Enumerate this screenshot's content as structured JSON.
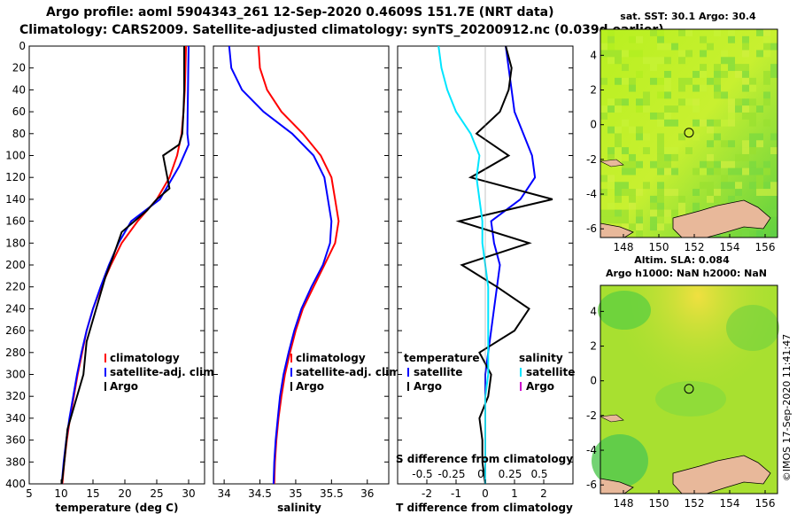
{
  "header": {
    "line1": "Argo profile: aoml 5904343_261 12-Sep-2020 0.4609S 151.7E (NRT data)",
    "line2": "Climatology: CARS2009. Satellite-adjusted climatology: synTS_20200912.nc (0.039d earlier)"
  },
  "colors": {
    "clim": "#ff0000",
    "sat": "#0000ff",
    "argo": "#000000",
    "sat_s": "#00e5ff",
    "argo_s": "#cc00cc",
    "land": "#e8b89a"
  },
  "chart_data": [
    {
      "type": "line",
      "name": "temperature",
      "xlabel": "temperature (deg C)",
      "ylabel": "",
      "xlim": [
        5,
        32.5
      ],
      "ylim": [
        400,
        0
      ],
      "xticks": [
        5,
        10,
        15,
        20,
        25,
        30
      ],
      "yticks": [
        0,
        20,
        40,
        60,
        80,
        100,
        120,
        140,
        160,
        180,
        200,
        220,
        240,
        260,
        280,
        300,
        320,
        340,
        360,
        380,
        400
      ],
      "legend": [
        "climatology",
        "satellite-adj. clim.",
        "Argo"
      ],
      "series": [
        {
          "name": "climatology",
          "color": "#ff0000",
          "x": [
            29.6,
            29.5,
            29.4,
            29.2,
            28.9,
            28.2,
            27.0,
            25.0,
            22.0,
            19.5,
            17.8,
            16.3,
            15.0,
            14.0,
            13.3,
            12.6,
            12.0,
            11.4,
            10.9,
            10.5,
            10.2
          ],
          "y": [
            0,
            20,
            40,
            60,
            80,
            100,
            120,
            140,
            160,
            180,
            200,
            220,
            240,
            260,
            280,
            300,
            320,
            340,
            360,
            380,
            400
          ]
        },
        {
          "name": "satellite-adj. clim.",
          "color": "#0000ff",
          "x": [
            30.0,
            29.95,
            29.9,
            29.85,
            29.8,
            30.0,
            28.5,
            25.5,
            21.0,
            19.0,
            17.5,
            16.2,
            15.0,
            14.0,
            13.2,
            12.5,
            11.9,
            11.3,
            10.8,
            10.4,
            10.1
          ],
          "y": [
            0,
            20,
            40,
            60,
            80,
            90,
            110,
            140,
            160,
            180,
            200,
            220,
            240,
            260,
            280,
            300,
            320,
            340,
            360,
            380,
            400
          ]
        },
        {
          "name": "Argo",
          "color": "#000000",
          "x": [
            29.3,
            29.3,
            29.3,
            29.2,
            29.0,
            28.5,
            26.0,
            27.0,
            25.0,
            23.5,
            21.5,
            19.5,
            18.0,
            17.0,
            15.5,
            14.0,
            13.5,
            12.5,
            11.0,
            10.5,
            10.3,
            10.1
          ],
          "y": [
            0,
            20,
            40,
            60,
            80,
            90,
            100,
            130,
            140,
            150,
            160,
            170,
            195,
            210,
            240,
            270,
            300,
            320,
            350,
            380,
            390,
            400
          ]
        }
      ]
    },
    {
      "type": "line",
      "name": "salinity",
      "xlabel": "salinity",
      "ylabel": "",
      "xlim": [
        33.85,
        36.3
      ],
      "ylim": [
        400,
        0
      ],
      "xticks": [
        34,
        34.5,
        35,
        35.5,
        36
      ],
      "legend": [
        "climatology",
        "satellite-adj. clim.",
        "Argo"
      ],
      "series": [
        {
          "name": "climatology",
          "color": "#ff0000",
          "x": [
            34.48,
            34.5,
            34.6,
            34.8,
            35.1,
            35.35,
            35.5,
            35.55,
            35.6,
            35.55,
            35.4,
            35.25,
            35.1,
            35.0,
            34.92,
            34.85,
            34.8,
            34.76,
            34.73,
            34.71,
            34.7
          ],
          "y": [
            0,
            20,
            40,
            60,
            80,
            100,
            120,
            140,
            160,
            180,
            200,
            220,
            240,
            260,
            280,
            300,
            320,
            340,
            360,
            380,
            400
          ]
        },
        {
          "name": "satellite-adj. clim.",
          "color": "#0000ff",
          "x": [
            34.07,
            34.1,
            34.25,
            34.55,
            34.95,
            35.25,
            35.4,
            35.45,
            35.5,
            35.48,
            35.38,
            35.22,
            35.08,
            34.98,
            34.9,
            34.83,
            34.78,
            34.75,
            34.72,
            34.7,
            34.69
          ],
          "y": [
            0,
            20,
            40,
            60,
            80,
            100,
            120,
            140,
            160,
            180,
            200,
            220,
            240,
            260,
            280,
            300,
            320,
            340,
            360,
            380,
            400
          ]
        },
        {
          "name": "Argo",
          "color": "#000000",
          "x": [],
          "y": []
        }
      ]
    },
    {
      "type": "line",
      "name": "differences",
      "xlabel": "T difference from climatology",
      "ylabel": "",
      "xlim": [
        -3,
        3
      ],
      "ylim": [
        400,
        0
      ],
      "xticks": [
        -2,
        -1,
        0,
        1,
        2
      ],
      "top_axis_label": "S difference from climatology",
      "top_ticks": [
        "-0.5",
        "-0.25",
        "0",
        "0.25",
        "0.5"
      ],
      "legend_temperature": [
        "temperature",
        "satellite",
        "Argo"
      ],
      "legend_salinity": [
        "salinity",
        "satellite",
        "Argo"
      ],
      "series": [
        {
          "name": "T satellite",
          "color": "#0000ff",
          "x": [
            0.7,
            0.8,
            0.9,
            1.0,
            1.3,
            1.6,
            1.7,
            1.2,
            0.2,
            0.3,
            0.5,
            0.4,
            0.3,
            0.2,
            0.1,
            0.0,
            0.0,
            0.0,
            0.0,
            0.0,
            0.0
          ],
          "y": [
            0,
            20,
            40,
            60,
            80,
            100,
            120,
            140,
            160,
            180,
            200,
            220,
            240,
            260,
            280,
            300,
            320,
            340,
            360,
            380,
            400
          ]
        },
        {
          "name": "T Argo",
          "color": "#000000",
          "x": [
            0.7,
            0.9,
            0.8,
            0.5,
            -0.3,
            0.8,
            -0.5,
            2.3,
            -0.9,
            1.5,
            -0.8,
            0.4,
            1.5,
            1.0,
            -0.2,
            0.2,
            0.1,
            -0.2,
            -0.1,
            -0.1,
            0.0
          ],
          "y": [
            0,
            20,
            40,
            60,
            80,
            100,
            120,
            140,
            160,
            180,
            200,
            220,
            240,
            260,
            280,
            300,
            320,
            340,
            360,
            380,
            400
          ]
        },
        {
          "name": "S satellite",
          "color": "#00e5ff",
          "x": [
            -1.6,
            -1.5,
            -1.3,
            -1.0,
            -0.5,
            -0.2,
            -0.3,
            -0.2,
            -0.1,
            -0.1,
            0.0,
            0.1,
            0.1,
            0.1,
            0.1,
            0.1,
            0.0,
            0.0,
            0.0,
            0.0,
            0.0
          ],
          "y": [
            0,
            20,
            40,
            60,
            80,
            100,
            120,
            140,
            160,
            180,
            200,
            220,
            240,
            260,
            280,
            300,
            320,
            340,
            360,
            380,
            400
          ]
        }
      ]
    },
    {
      "type": "heatmap",
      "name": "sst-map",
      "title": "sat. SST: 30.1 Argo: 30.4",
      "xticks": [
        148,
        150,
        152,
        154,
        156
      ],
      "yticks": [
        4,
        2,
        0,
        -2,
        -4,
        -6
      ],
      "xlim": [
        146.7,
        156.7
      ],
      "ylim": [
        -6.5,
        5.5
      ],
      "marker": {
        "lon": 151.7,
        "lat": -0.46
      }
    },
    {
      "type": "heatmap",
      "name": "sla-map",
      "title": "Altim. SLA: 0.084",
      "subtitle": "Argo h1000: NaN h2000: NaN",
      "xticks": [
        148,
        150,
        152,
        154,
        156
      ],
      "yticks": [
        4,
        2,
        0,
        -2,
        -4,
        -6
      ],
      "xlim": [
        146.7,
        156.7
      ],
      "ylim": [
        -6.5,
        5.5
      ],
      "marker": {
        "lon": 151.7,
        "lat": -0.46
      }
    }
  ],
  "footer": {
    "credit": "©IMOS 17-Sep-2020 11:41:47"
  }
}
